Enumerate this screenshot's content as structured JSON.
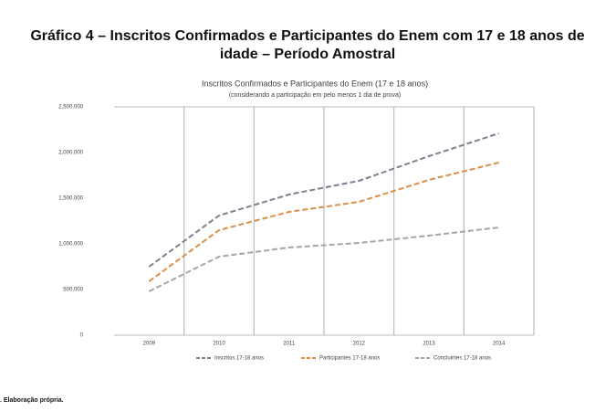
{
  "heading": [
    "Gráfico 4 – Inscritos Confirmados e Participantes do Enem com 17 e 18 anos de",
    "idade – Período Amostral"
  ],
  "chart_data": {
    "type": "line",
    "title": "Inscritos Confirmados e Participantes do Enem (17 e 18 anos)",
    "subtitle": "(considerando a participação em pelo menos 1 dia de prova)",
    "categories": [
      "2009",
      "2010",
      "2011",
      "2012",
      "2013",
      "2014"
    ],
    "series": [
      {
        "name": "Inscritos 17-18 anos",
        "color": "#7f7f90",
        "values": [
          750000,
          1310000,
          1540000,
          1690000,
          1960000,
          2210000
        ]
      },
      {
        "name": "Participantes 17-18 anos",
        "color": "#d9904a",
        "values": [
          590000,
          1150000,
          1350000,
          1460000,
          1700000,
          1890000
        ]
      },
      {
        "name": "Concluintes 17-18 anos",
        "color": "#a5a5a5",
        "values": [
          480000,
          860000,
          960000,
          1010000,
          1090000,
          1180000
        ]
      }
    ],
    "ylim": [
      0,
      2500000
    ],
    "yticks": [
      0,
      {
        "value": 500000,
        "label": "500,000"
      },
      {
        "value": 1000000,
        "label": "1,000,000"
      },
      {
        "value": 1500000,
        "label": "1,500,000"
      },
      {
        "value": 2000000,
        "label": "2,000,000"
      },
      {
        "value": 2500000,
        "label": "2,500,000"
      }
    ],
    "grid": true,
    "legend": "bottom"
  },
  "footer": ". Elaboração própria."
}
